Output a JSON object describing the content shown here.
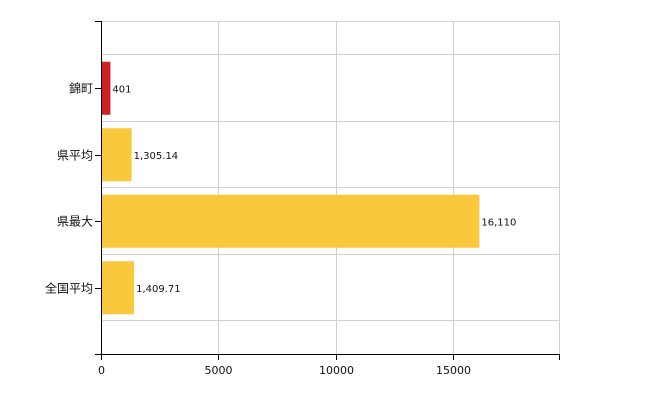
{
  "chart_data": {
    "type": "bar",
    "orientation": "horizontal",
    "categories": [
      "錦町",
      "県平均",
      "県最大",
      "全国平均"
    ],
    "values": [
      401,
      1305.14,
      16110,
      1409.71
    ],
    "data_labels": [
      "401",
      "1,305.14",
      "16,110",
      "1,409.71"
    ],
    "bar_colors": [
      "#cc2222",
      "#fac83c",
      "#fac83c",
      "#fac83c"
    ],
    "xlim": [
      0,
      19500
    ],
    "xticks": [
      0,
      5000,
      10000,
      15000
    ],
    "xtick_labels": [
      "0",
      "5000",
      "10000",
      "15000"
    ],
    "grid": true,
    "legend": "none",
    "title": "",
    "xlabel": "",
    "ylabel": ""
  }
}
